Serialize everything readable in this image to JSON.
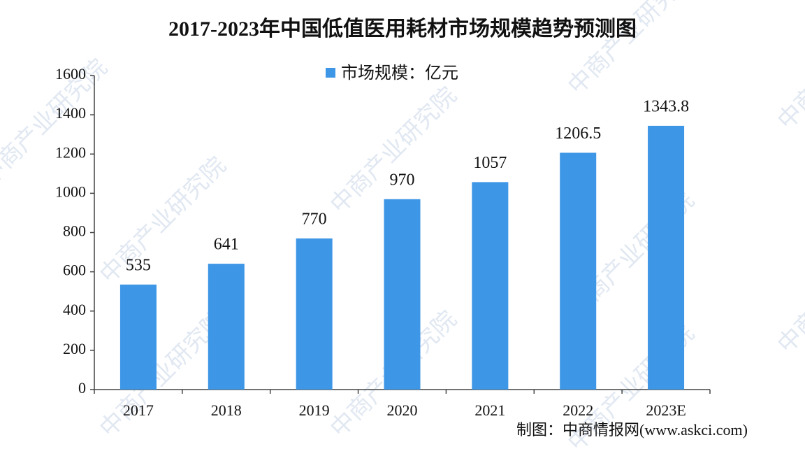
{
  "chart_data": {
    "type": "bar",
    "title": "2017-2023年中国低值医用耗材市场规模趋势预测图",
    "categories": [
      "2017",
      "2018",
      "2019",
      "2020",
      "2021",
      "2022",
      "2023E"
    ],
    "series": [
      {
        "name": "市场规模：亿元",
        "color": "#3d96e6",
        "values": [
          535,
          641,
          770,
          970,
          1057,
          1206.5,
          1343.8
        ]
      }
    ],
    "ylim": [
      0,
      1600
    ],
    "yticks": [
      0,
      200,
      400,
      600,
      800,
      1000,
      1200,
      1400,
      1600
    ],
    "grid": false,
    "legend": "top",
    "source": "制图：中商情报网(www.askci.com)",
    "watermark": "中商产业研究院"
  }
}
